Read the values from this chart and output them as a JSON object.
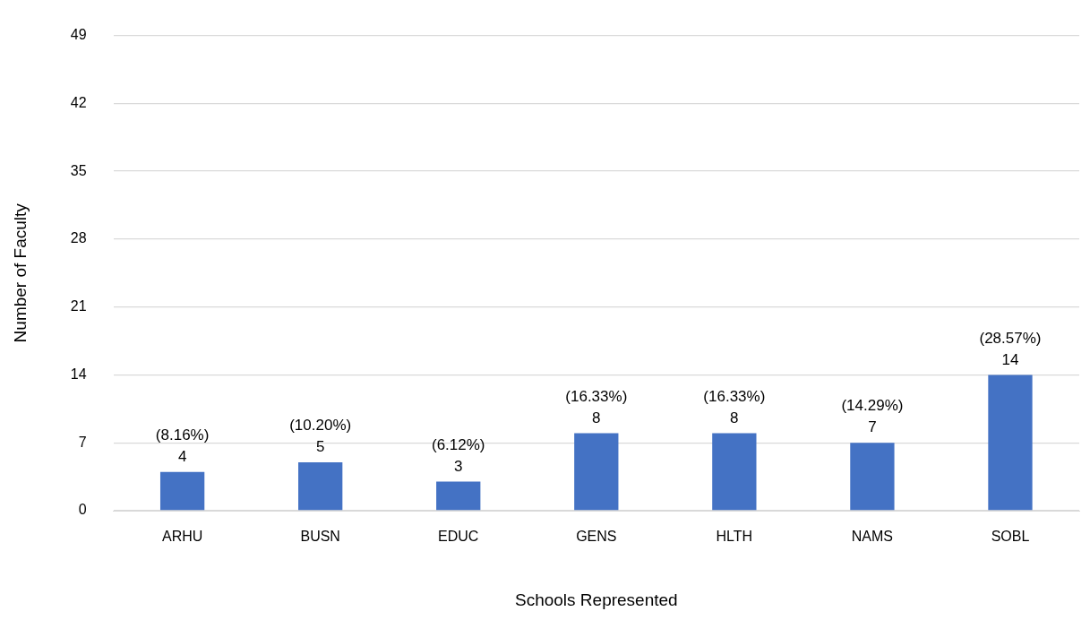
{
  "chart_data": {
    "type": "bar",
    "xlabel": "Schools Represented",
    "ylabel": "Number of Faculty",
    "categories": [
      "ARHU",
      "BUSN",
      "EDUC",
      "GENS",
      "HLTH",
      "NAMS",
      "SOBL"
    ],
    "values": [
      4,
      5,
      3,
      8,
      8,
      7,
      14
    ],
    "value_labels": [
      "(8.16%)\n4",
      "(10.20%)\n5",
      "(6.12%)\n3",
      "(16.33%)\n8",
      "(16.33%)\n8",
      "(14.29%)\n7",
      "(28.57%)\n14"
    ],
    "color": "#4472c4",
    "ylim": [
      0,
      49
    ],
    "yticks": [
      0,
      7,
      14,
      21,
      28,
      35,
      42,
      49
    ],
    "grid": "y",
    "legend": false
  }
}
